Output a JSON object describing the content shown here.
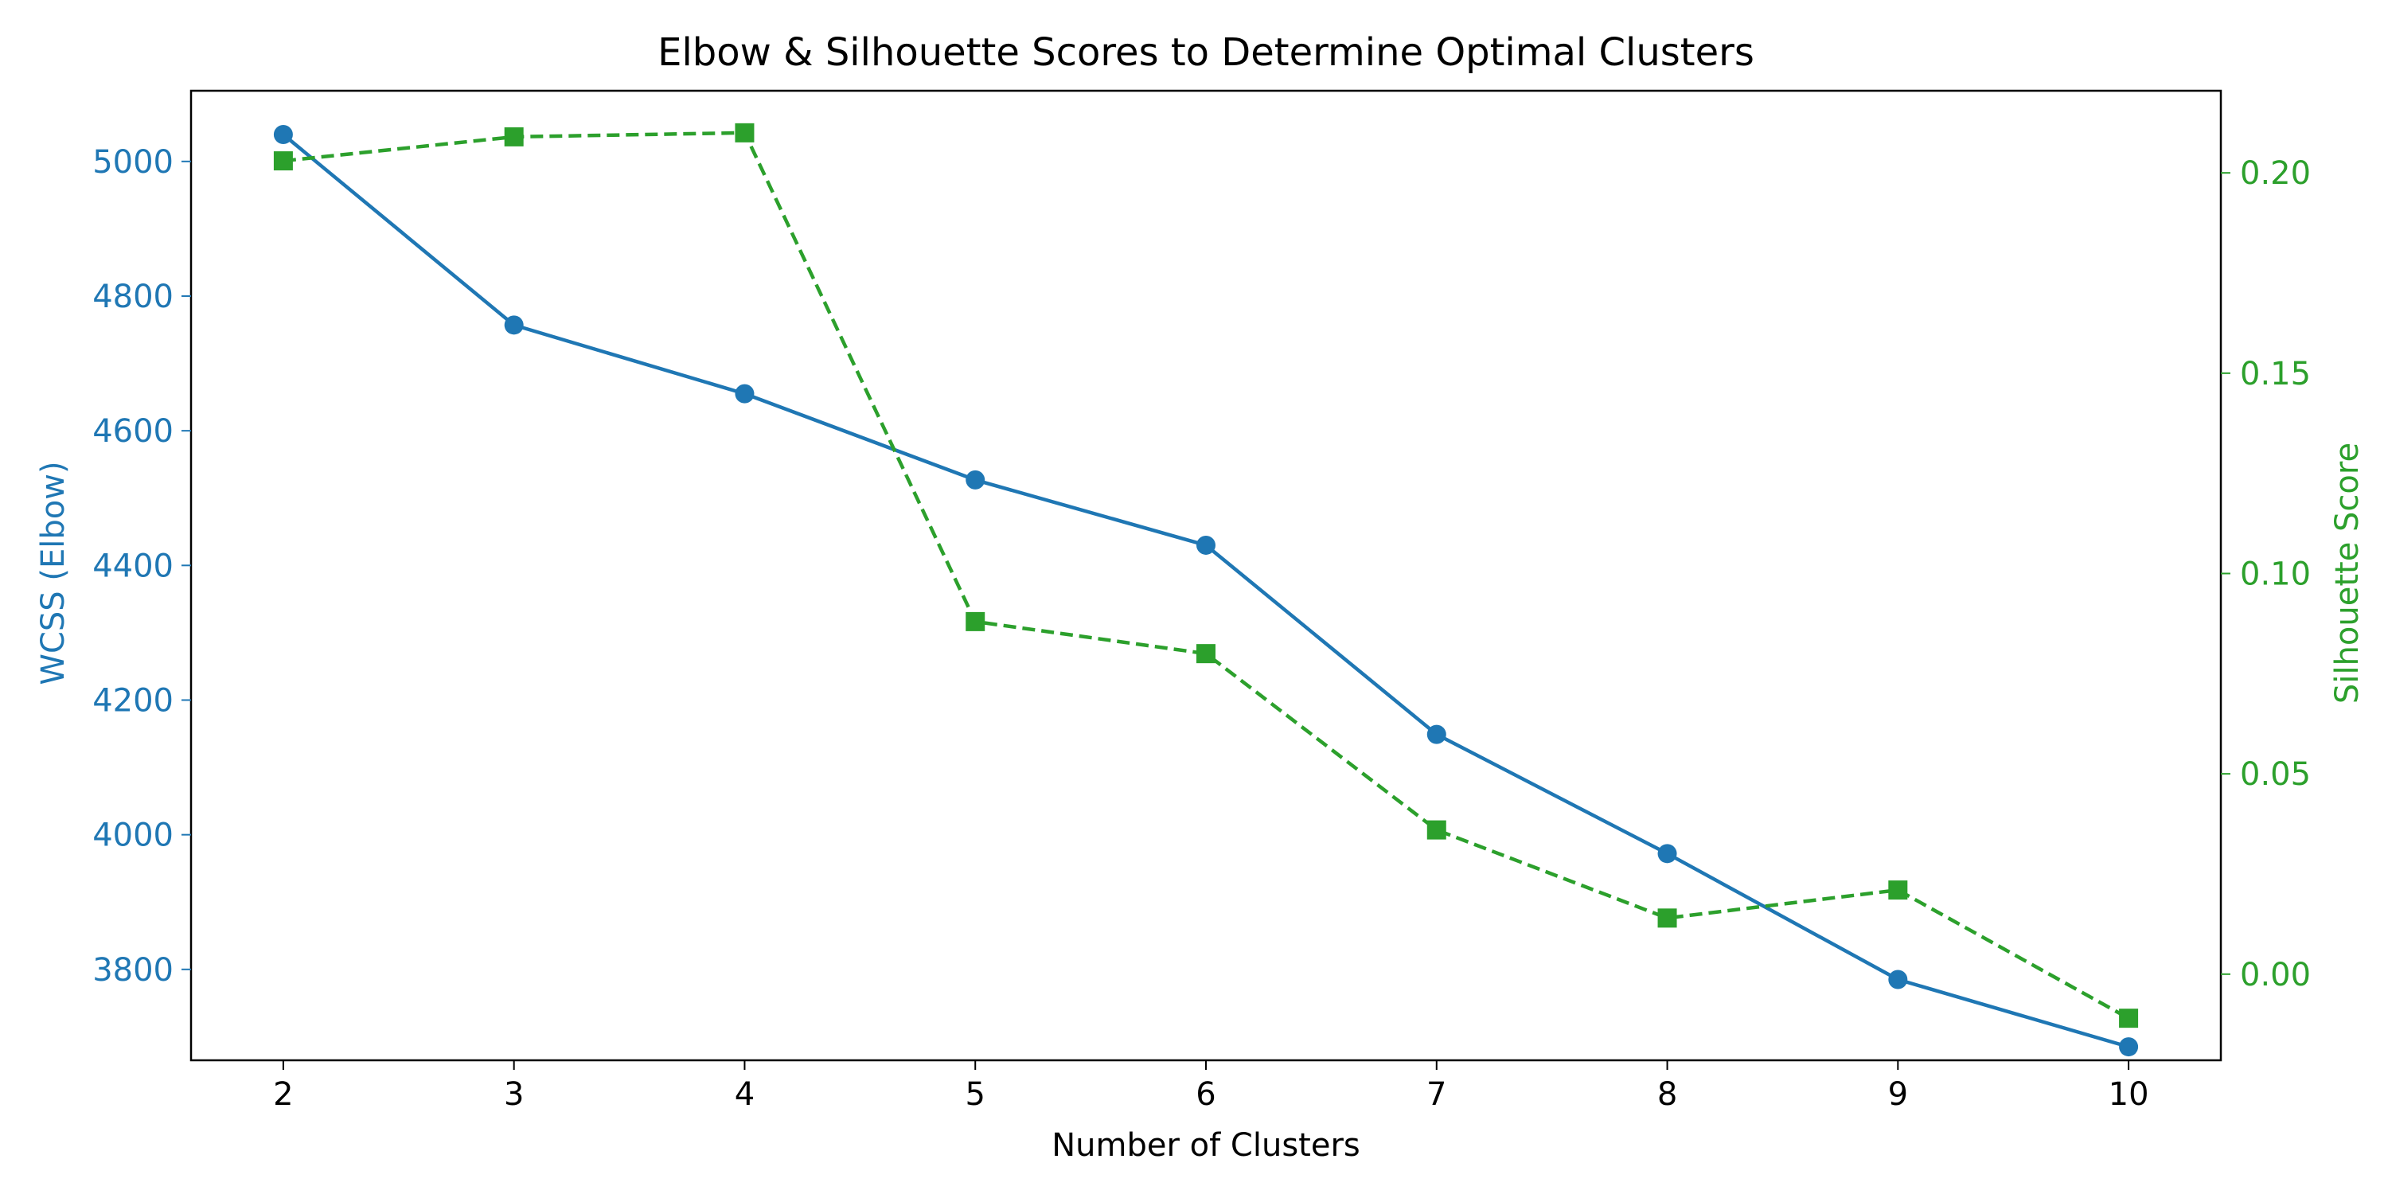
{
  "chart_data": {
    "type": "line",
    "title": "Elbow & Silhouette Scores to Determine Optimal Clusters",
    "xlabel": "Number of Clusters",
    "ylabel_left": "WCSS (Elbow)",
    "ylabel_right": "Silhouette Score",
    "x": [
      2,
      3,
      4,
      5,
      6,
      7,
      8,
      9,
      10
    ],
    "x_ticks": [
      "2",
      "3",
      "4",
      "5",
      "6",
      "7",
      "8",
      "9",
      "10"
    ],
    "xlim": [
      1.6,
      10.4
    ],
    "y_left_ticks": [
      "3800",
      "4000",
      "4200",
      "4400",
      "4600",
      "4800",
      "5000"
    ],
    "y_left_lim": [
      3665,
      5105
    ],
    "y_right_ticks": [
      "0.00",
      "0.05",
      "0.10",
      "0.15",
      "0.20"
    ],
    "y_right_lim": [
      -0.0215,
      0.2205
    ],
    "grid": false,
    "series": [
      {
        "axis": "left",
        "values": [
          5040,
          4757,
          4655,
          4527,
          4430,
          4149,
          3972,
          3785,
          3685
        ],
        "color": "#1f77b4",
        "line_style": "solid",
        "marker": "circle"
      },
      {
        "axis": "right",
        "values": [
          0.203,
          0.209,
          0.21,
          0.088,
          0.08,
          0.036,
          0.014,
          0.021,
          -0.011
        ],
        "color": "#2ca02c",
        "line_style": "dashed",
        "marker": "square"
      }
    ]
  }
}
